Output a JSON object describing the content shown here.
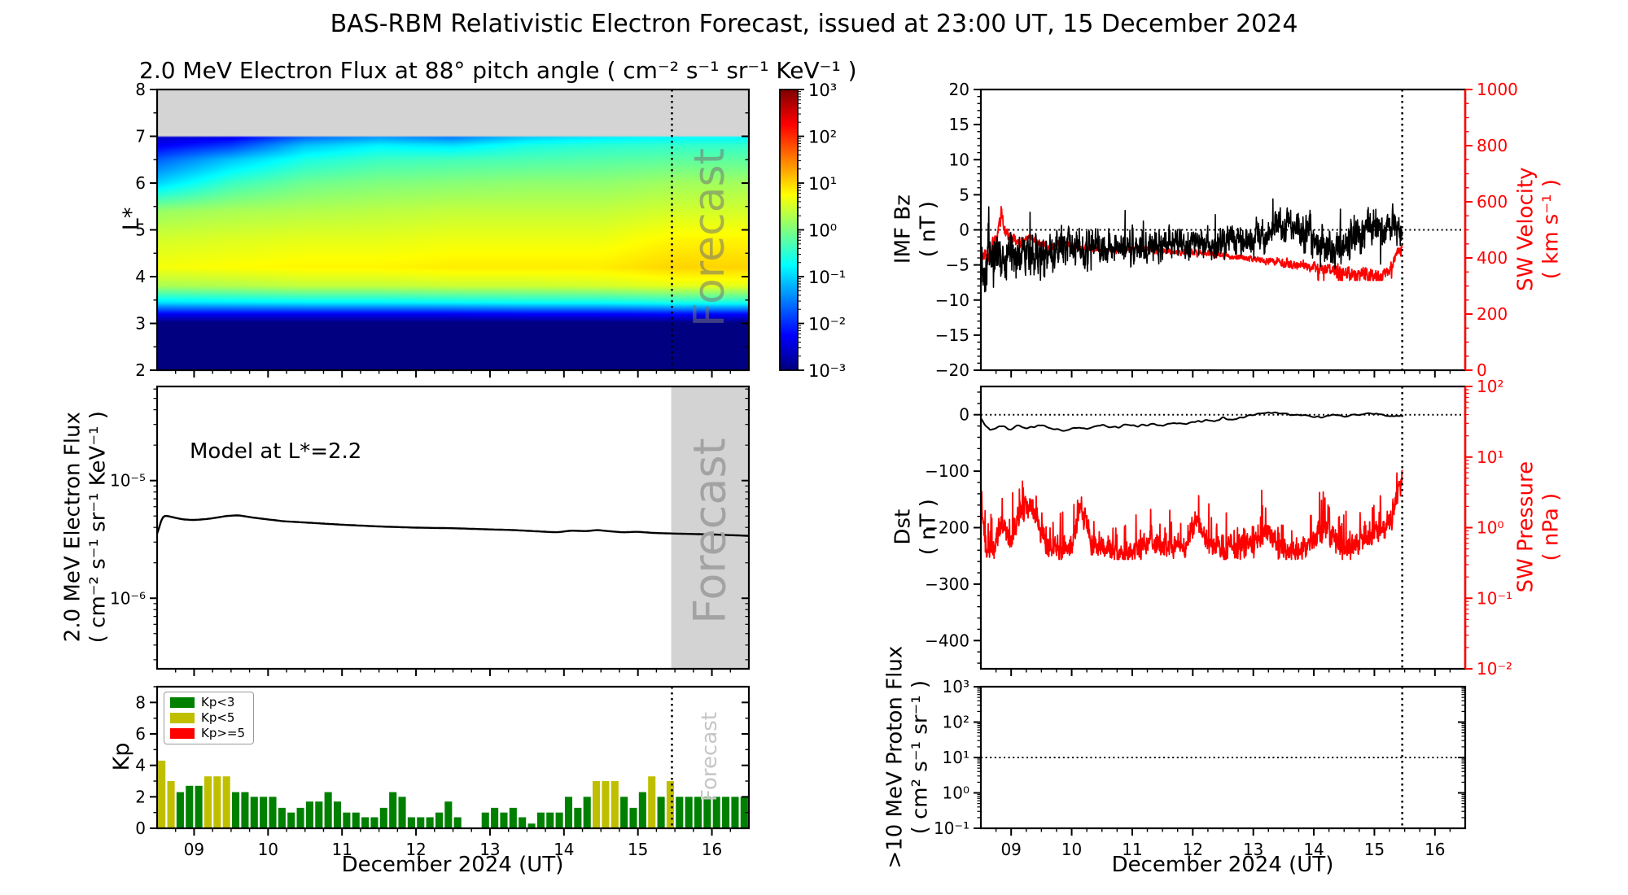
{
  "figure": {
    "title": "BAS-RBM Relativistic Electron Forecast, issued at 23:00 UT, 15 December 2024"
  },
  "xaxis": {
    "label": "December 2024 (UT)",
    "tick_labels": [
      "09",
      "10",
      "11",
      "12",
      "13",
      "14",
      "15",
      "16"
    ],
    "tick_days": [
      9,
      10,
      11,
      12,
      13,
      14,
      15,
      16
    ],
    "range_days": [
      8.5,
      16.5
    ],
    "forecast_start_day": 15.46
  },
  "colors": {
    "green": "#008000",
    "yellow": "#bfbf00",
    "red": "#ff0000",
    "black": "#000000",
    "forecast_band": "#d3d3d3",
    "nodata_gray": "#d4d4d4",
    "forecast_text_dark": "#9c9c9c",
    "forecast_text_light": "#c6c6c6",
    "forecast_text_overlay": "rgba(115,115,115,0.55)"
  },
  "chart_data": [
    {
      "id": "electron_flux_spectrogram",
      "type": "heatmap",
      "title": "2.0 MeV Electron Flux at 88° pitch angle ( cm⁻² s⁻¹ sr⁻¹ KeV⁻¹ )",
      "ylabel": "L*",
      "ylim": [
        2,
        8
      ],
      "yticks": [
        2,
        3,
        4,
        5,
        6,
        7,
        8
      ],
      "colormap": "jet",
      "scale": "log10",
      "clim_log10": [
        -3,
        3
      ],
      "colorbar_tick_labels": [
        "10³",
        "10²",
        "10¹",
        "10⁰",
        "10⁻¹",
        "10⁻²",
        "10⁻³"
      ],
      "colorbar_tick_log10": [
        3,
        2,
        1,
        0,
        -1,
        -2,
        -3
      ],
      "no_data_above_lstar": 7,
      "forecast_label": "Forecast",
      "grid_days": [
        8.5,
        9.5,
        10.5,
        11.5,
        12.5,
        13.5,
        14.5,
        15.5,
        16.5
      ],
      "grid_lstar": [
        2,
        3,
        3.2,
        3.45,
        3.8,
        4.2,
        4.8,
        5.4,
        6,
        6.5,
        6.8,
        7
      ],
      "grid_log10_flux": [
        [
          -3.2,
          -3.2,
          -3.2,
          -3.2,
          -3.2,
          -3.2,
          -3.2,
          -3.2,
          -3.2
        ],
        [
          -3.05,
          -3.05,
          -3.05,
          -3.05,
          -3.05,
          -3.05,
          -3.05,
          -3.05,
          -3.05
        ],
        [
          -2.3,
          -2.3,
          -2.3,
          -2.3,
          -2.3,
          -2.25,
          -2.25,
          -2.2,
          -2.2
        ],
        [
          -0.9,
          -0.85,
          -0.8,
          -0.8,
          -0.75,
          -0.7,
          -0.7,
          -0.6,
          -0.6
        ],
        [
          0.25,
          0.3,
          0.4,
          0.4,
          0.45,
          0.45,
          0.5,
          0.6,
          0.6
        ],
        [
          0.7,
          0.75,
          0.8,
          0.8,
          0.85,
          0.85,
          0.85,
          1.0,
          1.0
        ],
        [
          0.5,
          0.55,
          0.6,
          0.6,
          0.65,
          0.65,
          0.65,
          0.8,
          0.8
        ],
        [
          0.15,
          0.25,
          0.3,
          0.35,
          0.4,
          0.4,
          0.4,
          0.5,
          0.5
        ],
        [
          -1.0,
          -0.4,
          -0.1,
          0.0,
          0.05,
          0.1,
          0.1,
          0.2,
          0.2
        ],
        [
          -1.7,
          -1.1,
          -0.6,
          -0.4,
          -0.35,
          -0.3,
          -0.25,
          -0.2,
          -0.2
        ],
        [
          -2.3,
          -1.9,
          -1.1,
          -0.8,
          -0.9,
          -0.6,
          -0.5,
          -0.45,
          -0.45
        ],
        [
          -2.6,
          -2.4,
          -1.7,
          -1.4,
          -1.6,
          -1.1,
          -0.9,
          -0.8,
          -0.8
        ]
      ]
    },
    {
      "id": "model_electron_flux",
      "type": "line",
      "annotation": "Model at L*=2.2",
      "left_axis": {
        "label_line1": "2.0 MeV Electron Flux",
        "label_line2": "( cm⁻² s⁻¹ sr⁻¹ KeV⁻¹ )",
        "ylim_log10": [
          -6.6,
          -4.2
        ],
        "tick_decades": [
          -5,
          -6
        ],
        "tick_labels": [
          "10⁻⁵",
          "10⁻⁶"
        ]
      },
      "forecast_label": "Forecast",
      "forecast_band_days": [
        15.45,
        16.5
      ],
      "series": [
        {
          "name": "Model at L*=2.2",
          "color": "#000000",
          "anchor_days": [
            8.5,
            8.55,
            8.6,
            8.7,
            8.85,
            9.0,
            9.2,
            9.45,
            9.6,
            9.8,
            10.2,
            10.6,
            11.0,
            11.5,
            12.0,
            12.5,
            13.0,
            13.3,
            13.6,
            13.9,
            14.1,
            14.3,
            14.45,
            14.6,
            14.8,
            15.0,
            15.2,
            15.46,
            15.8,
            16.1,
            16.5
          ],
          "anchor_log10": [
            -5.49,
            -5.32,
            -5.295,
            -5.31,
            -5.33,
            -5.335,
            -5.325,
            -5.3,
            -5.295,
            -5.315,
            -5.345,
            -5.36,
            -5.375,
            -5.39,
            -5.4,
            -5.405,
            -5.415,
            -5.42,
            -5.43,
            -5.44,
            -5.425,
            -5.43,
            -5.42,
            -5.43,
            -5.44,
            -5.435,
            -5.445,
            -5.45,
            -5.455,
            -5.46,
            -5.47
          ]
        }
      ]
    },
    {
      "id": "kp_index",
      "type": "bar",
      "ylabel": "Kp",
      "ylim": [
        0,
        9
      ],
      "yticks": [
        0,
        2,
        4,
        6,
        8
      ],
      "bar_start_day": 8.5625,
      "bar_step_days": 0.125,
      "bar_width_days": 0.1,
      "values": [
        4.3,
        3.0,
        2.3,
        2.7,
        2.7,
        3.3,
        3.3,
        3.3,
        2.3,
        2.3,
        2.0,
        2.0,
        2.0,
        1.3,
        1.0,
        1.3,
        1.7,
        1.7,
        2.3,
        1.7,
        1.0,
        1.0,
        0.7,
        0.7,
        1.3,
        2.3,
        2.0,
        0.7,
        0.7,
        0.7,
        1.0,
        1.7,
        0.7,
        0,
        0,
        1.0,
        1.3,
        1.0,
        1.3,
        0.7,
        0.3,
        1.0,
        1.0,
        1.0,
        2.0,
        1.3,
        2.0,
        3.0,
        3.0,
        3.0,
        2.0,
        1.3,
        2.3,
        3.3,
        2.0,
        3.0,
        2.0,
        2.0,
        2.0,
        2.0,
        2.0,
        2.0,
        2.0,
        2.0
      ],
      "color_rule": {
        "green_below": 3,
        "yellow_below": 5,
        "red_at_or_above": 5
      },
      "legend": [
        {
          "label": "Kp<3",
          "color": "#008000"
        },
        {
          "label": "Kp<5",
          "color": "#bfbf00"
        },
        {
          "label": "Kp>=5",
          "color": "#ff0000"
        }
      ],
      "forecast_label": "Forecast"
    },
    {
      "id": "imf_bz_sw_velocity",
      "type": "line",
      "left_axis": {
        "label_line1": "IMF Bz",
        "label_line2": "( nT )",
        "ylim": [
          -20,
          20
        ],
        "tick_values": [
          20,
          15,
          10,
          5,
          0,
          -5,
          -10,
          -15,
          -20
        ],
        "tick_labels": [
          "20",
          "15",
          "10",
          "5",
          "0",
          "−5",
          "−10",
          "−15",
          "−20"
        ],
        "minor_step": 1
      },
      "right_axis": {
        "label_line1": "SW Velocity",
        "label_line2": "( km s⁻¹ )",
        "color": "#ff0000",
        "ylim": [
          0,
          1000
        ],
        "tick_values": [
          0,
          200,
          400,
          600,
          800,
          1000
        ],
        "tick_labels": [
          "0",
          "200",
          "400",
          "600",
          "800",
          "1000"
        ],
        "minor_step": 50
      },
      "hline_left_value": 0,
      "data_end_day": 15.46,
      "series": [
        {
          "name": "IMF Bz",
          "color": "#000000",
          "axis": "left",
          "anchor_days": [
            8.5,
            8.56,
            8.62,
            8.7,
            8.78,
            8.9,
            9.0,
            9.08,
            9.2,
            9.35,
            9.5,
            9.65,
            9.8,
            10.0,
            10.2,
            10.4,
            10.7,
            11.0,
            11.3,
            11.6,
            11.9,
            12.1,
            12.35,
            12.6,
            12.9,
            13.2,
            13.45,
            13.7,
            13.95,
            14.15,
            14.35,
            14.55,
            14.75,
            14.95,
            15.15,
            15.3,
            15.46
          ],
          "anchor_values": [
            -5,
            -7.5,
            -2,
            -4.5,
            -3,
            -4,
            -3,
            -4.5,
            -2.5,
            -3.5,
            -4,
            -3,
            -2.5,
            -2,
            -2.8,
            -1.8,
            -2.2,
            -2,
            -2.5,
            -1.8,
            -2.2,
            -1.2,
            -2.5,
            -1.5,
            -1.8,
            -0.5,
            1,
            0.3,
            -1,
            -2.5,
            -3,
            -1.5,
            -0.5,
            0.5,
            -0.5,
            0.8,
            -0.5
          ],
          "noise": {
            "seed": 11,
            "points": 1500,
            "amp_days": [
              8.5,
              9.5,
              10.5,
              12,
              13.5,
              14.4,
              15.46
            ],
            "amp_values": [
              3.4,
              3,
              2.4,
              2.2,
              2.4,
              2.8,
              2.4
            ],
            "spike_prob": 0.015,
            "spike_mag": 5,
            "clamp": [
              -9.8,
              7.2
            ]
          }
        },
        {
          "name": "SW Velocity",
          "color": "#ff0000",
          "axis": "right",
          "anchor_days": [
            8.5,
            8.56,
            8.62,
            8.7,
            8.78,
            8.84,
            8.9,
            9.0,
            9.15,
            9.3,
            9.5,
            9.7,
            9.9,
            10.1,
            10.4,
            10.7,
            11.0,
            11.4,
            11.8,
            12.2,
            12.6,
            13.0,
            13.4,
            13.8,
            14.2,
            14.6,
            14.9,
            15.1,
            15.25,
            15.38,
            15.46
          ],
          "anchor_values": [
            395,
            420,
            385,
            445,
            490,
            565,
            495,
            470,
            455,
            470,
            450,
            440,
            455,
            440,
            430,
            425,
            435,
            425,
            420,
            415,
            405,
            395,
            385,
            372,
            360,
            345,
            338,
            335,
            355,
            425,
            430
          ],
          "noise": {
            "seed": 21,
            "points": 1500,
            "amp_days": [
              8.5,
              9.2,
              10,
              13,
              14.2,
              15,
              15.46
            ],
            "amp_values": [
              30,
              18,
              12,
              10,
              22,
              25,
              18
            ],
            "downspike_window": [
              14,
              15.32
            ],
            "downspike_prob": 0.1,
            "downspike_mag": 55,
            "clamp": [
              320,
              590
            ]
          }
        }
      ]
    },
    {
      "id": "dst_sw_pressure",
      "type": "line",
      "left_axis": {
        "label_line1": "Dst",
        "label_line2": "( nT )",
        "ylim": [
          -450,
          50
        ],
        "tick_values": [
          0,
          -100,
          -200,
          -300,
          -400
        ],
        "tick_labels": [
          "0",
          "−100",
          "−200",
          "−300",
          "−400"
        ],
        "minor_step": 20
      },
      "right_axis": {
        "label_line1": "SW Pressure",
        "label_line2": "( nPa )",
        "color": "#ff0000",
        "ylim_log10": [
          -2,
          2
        ],
        "tick_decades": [
          2,
          1,
          0,
          -1,
          -2
        ],
        "tick_labels": [
          "10²",
          "10¹",
          "10⁰",
          "10⁻¹",
          "10⁻²"
        ]
      },
      "hline_left_value": 0,
      "data_end_day": 15.46,
      "series": [
        {
          "name": "Dst",
          "color": "#000000",
          "axis": "left",
          "anchor_days": [
            8.5,
            8.65,
            8.8,
            9.0,
            9.15,
            9.3,
            9.5,
            9.7,
            9.9,
            10.1,
            10.3,
            10.5,
            10.7,
            10.9,
            11.1,
            11.3,
            11.5,
            11.7,
            11.9,
            12.1,
            12.3,
            12.5,
            12.7,
            12.9,
            13.1,
            13.3,
            13.5,
            13.7,
            13.9,
            14.1,
            14.3,
            14.5,
            14.7,
            14.9,
            15.1,
            15.25,
            15.46
          ],
          "anchor_values": [
            -8,
            -28,
            -22,
            -25,
            -20,
            -24,
            -20,
            -26,
            -28,
            -22,
            -24,
            -18,
            -22,
            -18,
            -20,
            -16,
            -18,
            -14,
            -16,
            -10,
            -12,
            -6,
            -8,
            -2,
            2,
            4,
            3,
            0,
            -2,
            -4,
            -1,
            -3,
            1,
            3,
            1,
            -4,
            -2
          ],
          "noise": {
            "seed": 31,
            "points": 420,
            "amp": 2.2,
            "smooth": 5
          }
        },
        {
          "name": "SW Pressure",
          "color": "#ff0000",
          "axis": "right",
          "anchor_days": [
            8.5,
            8.58,
            8.7,
            8.85,
            9.0,
            9.15,
            9.3,
            9.45,
            9.6,
            9.8,
            10.0,
            10.15,
            10.3,
            10.5,
            10.7,
            10.9,
            11.1,
            11.3,
            11.5,
            11.7,
            11.9,
            12.05,
            12.2,
            12.4,
            12.6,
            12.8,
            13.0,
            13.2,
            13.4,
            13.6,
            13.8,
            14.0,
            14.2,
            14.4,
            14.6,
            14.8,
            15.0,
            15.15,
            15.3,
            15.4,
            15.46
          ],
          "anchor_values_npa": [
            1.6,
            0.55,
            0.5,
            1.1,
            0.6,
            1.6,
            2.2,
            1.1,
            0.5,
            0.55,
            0.5,
            1.8,
            0.6,
            0.5,
            0.45,
            0.4,
            0.5,
            0.65,
            0.5,
            0.55,
            0.5,
            1.3,
            0.7,
            0.55,
            0.5,
            0.55,
            0.5,
            0.9,
            0.55,
            0.45,
            0.5,
            0.65,
            1.0,
            0.6,
            0.5,
            0.65,
            0.8,
            0.9,
            1.4,
            3.2,
            4.5
          ],
          "noise": {
            "seed": 41,
            "points": 1500,
            "log_sigma": 0.14,
            "upspike_prob": 0.09,
            "upspike_mag": 0.55,
            "clamp_log10": [
              -0.45,
              0.9
            ]
          }
        }
      ]
    },
    {
      "id": "proton_flux",
      "type": "line",
      "left_axis": {
        "label_line1": ">10 MeV Proton Flux",
        "label_line2": "( cm² s⁻¹ sr⁻¹ )",
        "ylim_log10": [
          -1,
          3
        ],
        "tick_decades": [
          3,
          2,
          1,
          0,
          -1
        ],
        "tick_labels": [
          "10³",
          "10²",
          "10¹",
          "10⁰",
          "10⁻¹"
        ]
      },
      "hline_log10": 1,
      "series": []
    }
  ]
}
